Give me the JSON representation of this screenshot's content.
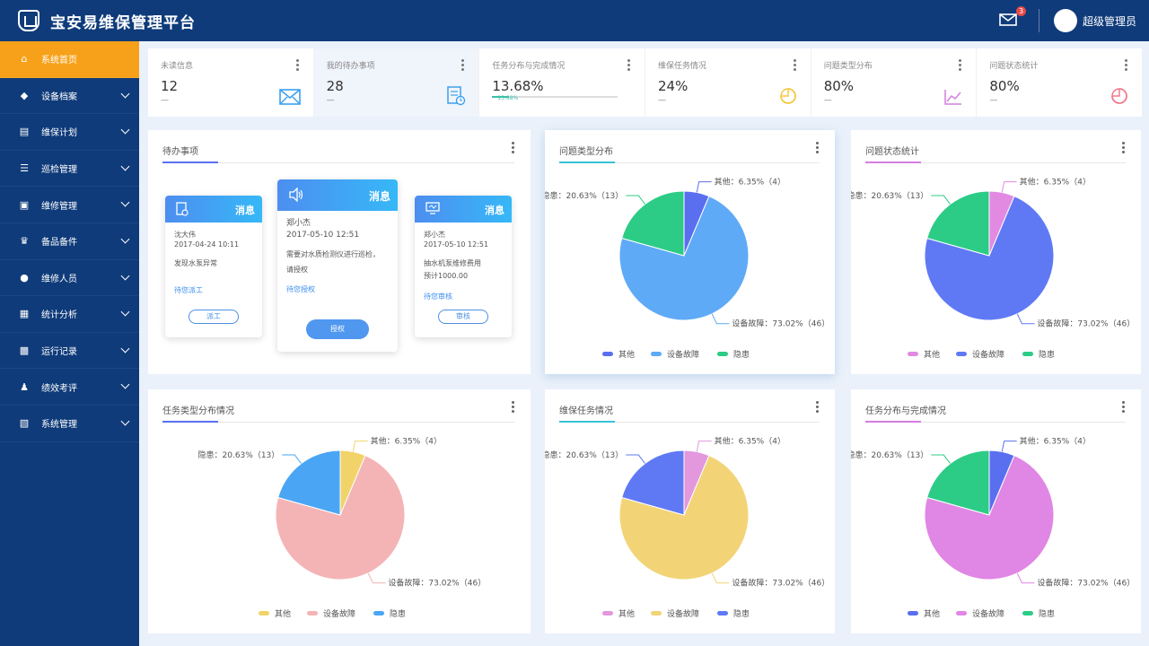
{
  "header": {
    "title": "宝安易维保管理平台",
    "mail_badge": "3",
    "user_name": "超级管理员"
  },
  "sidebar": {
    "items": [
      {
        "label": "系统首页",
        "icon": "home-icon",
        "active": true
      },
      {
        "label": "设备档案",
        "icon": "cube-icon"
      },
      {
        "label": "维保计划",
        "icon": "chart-icon"
      },
      {
        "label": "巡检管理",
        "icon": "list-icon"
      },
      {
        "label": "维修管理",
        "icon": "toolbox-icon"
      },
      {
        "label": "备品备件",
        "icon": "crown-icon"
      },
      {
        "label": "维修人员",
        "icon": "chat-icon"
      },
      {
        "label": "统计分析",
        "icon": "document-icon"
      },
      {
        "label": "运行记录",
        "icon": "record-icon"
      },
      {
        "label": "绩效考评",
        "icon": "person-icon"
      },
      {
        "label": "系统管理",
        "icon": "settings-icon"
      }
    ]
  },
  "stats": [
    {
      "label": "未读信息",
      "value": "12",
      "dash": "—",
      "icon": "mail-icon",
      "color": "#3aa0f0"
    },
    {
      "label": "我的待办事项",
      "value": "28",
      "dash": "—",
      "icon": "document-icon",
      "color": "#3aa0f0"
    },
    {
      "label": "任务分布与完成情况",
      "value": "13.68%",
      "progress_label": "13.68%",
      "progress": 0.1368,
      "color": "#3bc0a8"
    },
    {
      "label": "维保任务情况",
      "value": "24%",
      "dash": "—",
      "icon": "pie-icon",
      "color": "#f5c842"
    },
    {
      "label": "问题类型分布",
      "value": "80%",
      "dash": "—",
      "icon": "line-chart-icon",
      "color": "#d37fe0"
    },
    {
      "label": "问题状态统计",
      "value": "80%",
      "dash": "—",
      "icon": "pie-icon",
      "color": "#f17a8c"
    }
  ],
  "todo": {
    "title": "待办事项",
    "messages": [
      {
        "title": "消息",
        "name": "沈大伟",
        "time": "2017-04-24 10:11",
        "content": "发现水泵异常",
        "link": "待您派工",
        "button": "派工"
      },
      {
        "title": "消息",
        "name": "郑小杰",
        "time": "2017-05-10 12:51",
        "content": "需要对水质检测仪进行巡检，",
        "content2": "请授权",
        "link": "待您授权",
        "button": "授权"
      },
      {
        "title": "消息",
        "name": "郑小杰",
        "time": "2017-05-10 12:51",
        "content": "抽水机泵维修费用",
        "content2": "预计1000.00",
        "link": "待您审核",
        "button": "审核"
      }
    ]
  },
  "pie_labels": {
    "other": "其他：6.35%（4）",
    "fault": "设备故障：73.02%（46）",
    "hidden": "隐患：20.63%（13）"
  },
  "legend_names": {
    "other": "其他",
    "fault": "设备故障",
    "hidden": "隐患"
  },
  "chart_data": [
    {
      "type": "pie",
      "title": "问题类型分布",
      "categories": [
        "其他",
        "设备故障",
        "隐患"
      ],
      "values": [
        6.35,
        73.02,
        20.63
      ],
      "counts": [
        4,
        46,
        13
      ],
      "colors": [
        "#5a6ff0",
        "#5eaaf7",
        "#2ccc86"
      ],
      "legend": "bottom"
    },
    {
      "type": "pie",
      "title": "问题状态统计",
      "categories": [
        "其他",
        "设备故障",
        "隐患"
      ],
      "values": [
        6.35,
        73.02,
        20.63
      ],
      "counts": [
        4,
        46,
        13
      ],
      "colors": [
        "#e28ae2",
        "#5f79f5",
        "#2ccc86"
      ],
      "legend": "bottom"
    },
    {
      "type": "pie",
      "title": "任务类型分布情况",
      "categories": [
        "其他",
        "设备故障",
        "隐患"
      ],
      "values": [
        6.35,
        73.02,
        20.63
      ],
      "counts": [
        4,
        46,
        13
      ],
      "colors": [
        "#f1d369",
        "#f4b4b6",
        "#4aa6f4"
      ],
      "legend": "bottom"
    },
    {
      "type": "pie",
      "title": "维保任务情况",
      "categories": [
        "其他",
        "设备故障",
        "隐患"
      ],
      "values": [
        6.35,
        73.02,
        20.63
      ],
      "counts": [
        4,
        46,
        13
      ],
      "colors": [
        "#e398dd",
        "#f2d477",
        "#5f79f5"
      ],
      "legend": "bottom"
    },
    {
      "type": "pie",
      "title": "任务分布与完成情况",
      "categories": [
        "其他",
        "设备故障",
        "隐患"
      ],
      "values": [
        6.35,
        73.02,
        20.63
      ],
      "counts": [
        4,
        46,
        13
      ],
      "colors": [
        "#5a6ff0",
        "#e086e4",
        "#2ccc86"
      ],
      "legend": "bottom"
    }
  ]
}
